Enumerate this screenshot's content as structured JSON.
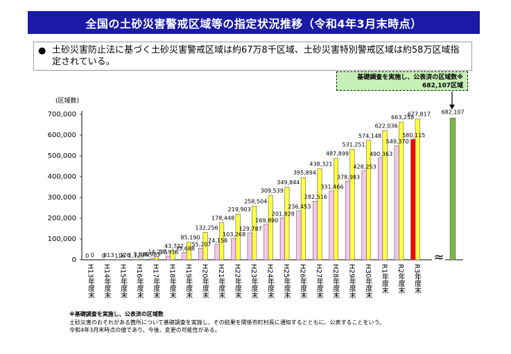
{
  "header": {
    "title": "全国の土砂災害警戒区域等の指定状況推移（令和4年3月末時点）"
  },
  "summary": {
    "bullet": "●",
    "text": "土砂災害防止法に基づく土砂災害警戒区域は約67万8千区域、土砂災害特別警戒区域は約58万区域指定されている。"
  },
  "callout": {
    "line1": "基礎調査を実施し、公表済の区域数※",
    "line2": "682,107区域"
  },
  "footnotes": {
    "title": "※基礎調査を実施し、公表済の区域数",
    "line1": "土砂災害のおそれがある箇所について基礎調査を実施し、その結果を関係市町村長に通知するとともに、公表することをいう。",
    "line2": "令和4年3月末時点の値であり、今後、変更の可能性がある。"
  },
  "chart_data": {
    "type": "bar",
    "ylabel": "(区域数)",
    "ylim": [
      0,
      700000
    ],
    "yticks": [
      0,
      100000,
      200000,
      300000,
      400000,
      500000,
      600000,
      700000
    ],
    "ytick_labels": [
      "0",
      "100,000",
      "200,000",
      "300,000",
      "400,000",
      "500,000",
      "600,000",
      "700,000"
    ],
    "categories": [
      "H13年度末",
      "H14年度末",
      "H15年度末",
      "H16年度末",
      "H17年度末",
      "H18年度末",
      "H19年度末",
      "H20年度末",
      "H21年度末",
      "H22年度末",
      "H23年度末",
      "H24年度末",
      "H25年度末",
      "H26年度末",
      "H27年度末",
      "H28年度末",
      "H29年度末",
      "H30年度末",
      "R1年度末",
      "R2年度末",
      "R3年度末"
    ],
    "series": [
      {
        "name": "土砂災害特別警戒区域",
        "color": "#f5c6ec",
        "highlight_color": "#ff0000",
        "values": [
          0,
          0,
          116,
          1120,
          6983,
          17916,
          35688,
          55207,
          74158,
          103268,
          129787,
          169890,
          201828,
          236453,
          282516,
          331466,
          378983,
          428253,
          490363,
          549370,
          580115
        ],
        "labels": [
          "0",
          "0",
          "116",
          "1,120",
          "6,983",
          "17,916",
          "35,688",
          "55,207",
          "74,158",
          "103,268",
          "129,787",
          "169,890",
          "201,828",
          "236,453",
          "282,516",
          "331,466",
          "378,983",
          "428,253",
          "490,363",
          "549,370",
          "580,115"
        ]
      },
      {
        "name": "土砂災害警戒区域",
        "color": "#ffff44",
        "highlight_color": "#ffff44",
        "values": [
          0,
          813,
          126,
          3580,
          14296,
          43722,
          85190,
          132256,
          178448,
          219903,
          258504,
          309539,
          349844,
          395894,
          438321,
          487899,
          531251,
          574148,
          622036,
          663258,
          677817
        ],
        "labels": [
          "0",
          "813",
          "126",
          "3,580",
          "14,296",
          "43,722",
          "85,190",
          "132,256",
          "178,448",
          "219,903",
          "258,504",
          "309,539",
          "349,844",
          "395,894",
          "438,321",
          "487,899",
          "531,251",
          "574,148",
          "622,036",
          "663,258",
          "677,817"
        ]
      }
    ],
    "extra_bar": {
      "name": "基礎調査を実施し、公表済の区域数",
      "value": 682107,
      "label": "682,107",
      "color": "#7ab648"
    },
    "axis_break_symbol": "≈"
  }
}
